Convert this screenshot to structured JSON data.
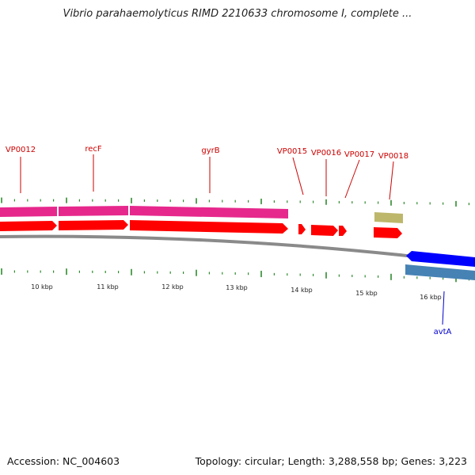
{
  "title": "Vibrio parahaemolyticus RIMD 2210633 chromosome I, complete ...",
  "footer": {
    "accession": "Accession: NC_004603",
    "summary": "Topology: circular; Length: 3,288,558 bp; Genes: 3,223"
  },
  "colors": {
    "forward_cds": "#ff0000",
    "forward_gene": "#e6288c",
    "reverse_cds": "#0000ff",
    "reverse_gene": "#4682b4",
    "misc_feature": "#bdb76b",
    "tick": "#2e8b2e",
    "backbone": "#8a8a8a",
    "forward_label": "#cc0000",
    "reverse_label": "#0000cc"
  },
  "scale": {
    "labels": [
      "10 kbp",
      "11 kbp",
      "12 kbp",
      "13 kbp",
      "14 kbp",
      "15 kbp",
      "16 kbp"
    ]
  },
  "genes": [
    {
      "label": "VP0012",
      "strand": "forward"
    },
    {
      "label": "recF",
      "strand": "forward"
    },
    {
      "label": "gyrB",
      "strand": "forward"
    },
    {
      "label": "VP0015",
      "strand": "forward"
    },
    {
      "label": "VP0016",
      "strand": "forward"
    },
    {
      "label": "VP0017",
      "strand": "forward"
    },
    {
      "label": "VP0018",
      "strand": "forward"
    },
    {
      "label": "avtA",
      "strand": "reverse"
    }
  ]
}
